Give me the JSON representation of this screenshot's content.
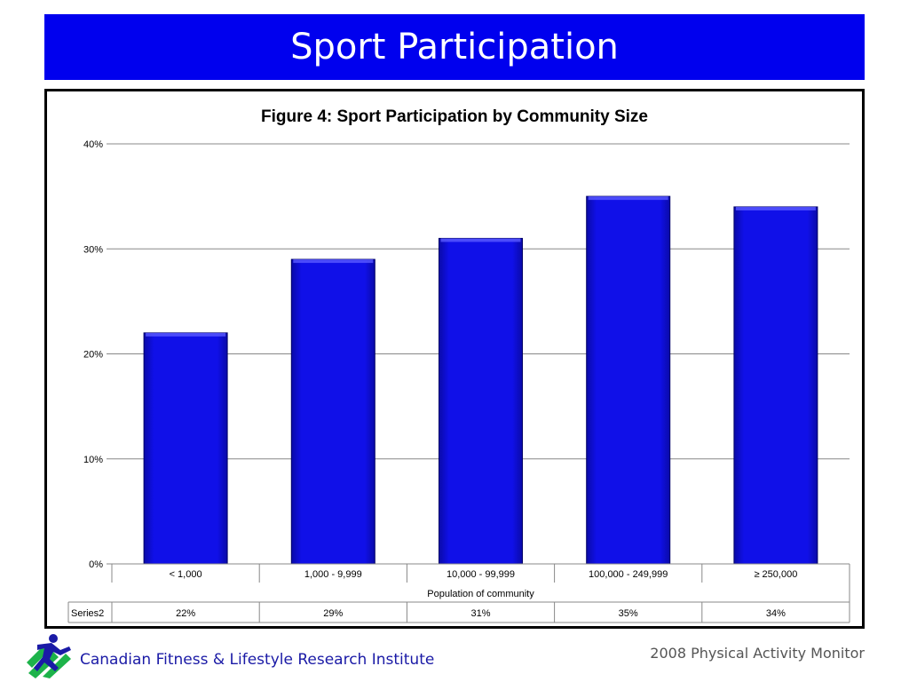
{
  "slide": {
    "title": "Sport Participation",
    "org_name": "Canadian Fitness & Lifestyle Research Institute",
    "report_name": "2008 Physical Activity Monitor"
  },
  "colors": {
    "banner": "#0000ee",
    "bar": "#1010e8",
    "org_text": "#1a1aa6"
  },
  "chart_data": {
    "type": "bar",
    "title": "Figure 4: Sport Participation by Community Size",
    "xlabel": "Population of community",
    "ylabel": "",
    "categories": [
      "< 1,000",
      "1,000 - 9,999",
      "10,000 - 99,999",
      "100,000 - 249,999",
      "≥ 250,000"
    ],
    "series": [
      {
        "name": "Series2",
        "values": [
          22,
          29,
          31,
          35,
          34
        ]
      }
    ],
    "value_labels": [
      "22%",
      "29%",
      "31%",
      "35%",
      "34%"
    ],
    "ylim": [
      0,
      40
    ],
    "yticks": [
      0,
      10,
      20,
      30,
      40
    ],
    "ytick_labels": [
      "0%",
      "10%",
      "20%",
      "30%",
      "40%"
    ],
    "grid": true,
    "legend": "none",
    "data_table": true
  }
}
